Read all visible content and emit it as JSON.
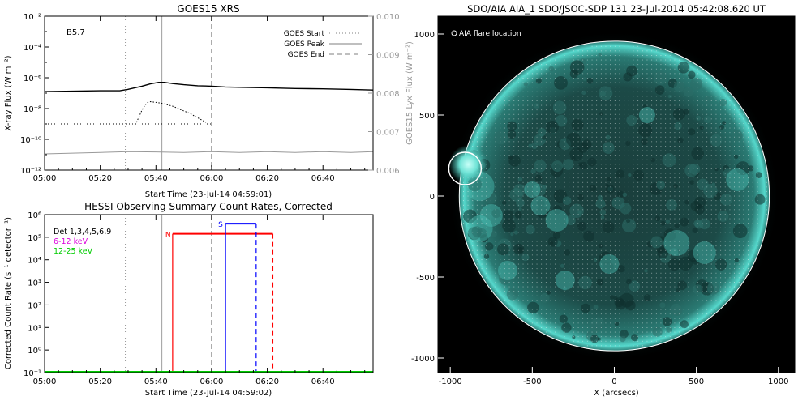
{
  "chart_data": [
    {
      "type": "line",
      "title": "GOES15 XRS",
      "xlabel": "Start Time (23-Jul-14 04:59:01)",
      "ylabel": "X-ray Flux (W m⁻²)",
      "ylabel_right": "GOES15 Lyx Flux (W m⁻²)",
      "class_label": "B5.7",
      "x_ticks": [
        "05:00",
        "05:20",
        "05:40",
        "06:00",
        "06:20",
        "06:40"
      ],
      "x_range_min": [
        0,
        118
      ],
      "y_scale": "log",
      "y_ticks": [
        "10⁻¹²",
        "10⁻¹⁰",
        "10⁻⁸",
        "10⁻⁶",
        "10⁻⁴",
        "10⁻²"
      ],
      "ylim_log10": [
        -12,
        -2
      ],
      "y2_ticks": [
        "0.006",
        "0.007",
        "0.008",
        "0.009",
        "0.010"
      ],
      "y2lim": [
        0.006,
        0.01
      ],
      "legend": {
        "position": "top-right",
        "entries": [
          {
            "label": "GOES Start",
            "style": "dotted",
            "color": "#aaaaaa"
          },
          {
            "label": "GOES Peak",
            "style": "solid",
            "color": "#aaaaaa"
          },
          {
            "label": "GOES End",
            "style": "dashed",
            "color": "#aaaaaa"
          }
        ]
      },
      "events_min": {
        "start": 29,
        "peak": 42,
        "end": 60
      },
      "background_level_log10": -9.0,
      "series": [
        {
          "color": "#000000",
          "style": "solid",
          "x": [
            0,
            20,
            27,
            30,
            35,
            38,
            41,
            43,
            46,
            50,
            55,
            60,
            65,
            70,
            80,
            90,
            100,
            110,
            118
          ],
          "y_log10": [
            -6.9,
            -6.85,
            -6.85,
            -6.75,
            -6.55,
            -6.4,
            -6.3,
            -6.3,
            -6.38,
            -6.45,
            -6.52,
            -6.55,
            -6.6,
            -6.62,
            -6.65,
            -6.7,
            -6.72,
            -6.76,
            -6.8
          ]
        },
        {
          "color": "#000000",
          "style": "dotted",
          "x": [
            33,
            34,
            35,
            36,
            37,
            38,
            40,
            42,
            44,
            46,
            48,
            50,
            52,
            54,
            56,
            58
          ],
          "y_log10": [
            -8.9,
            -8.5,
            -8.1,
            -7.8,
            -7.6,
            -7.55,
            -7.6,
            -7.65,
            -7.75,
            -7.85,
            -8.0,
            -8.15,
            -8.3,
            -8.5,
            -8.7,
            -8.9
          ]
        },
        {
          "color": "#999999",
          "style": "solid",
          "x": [
            0,
            10,
            20,
            30,
            40,
            50,
            60,
            70,
            80,
            90,
            100,
            110,
            118
          ],
          "y_log10": [
            -10.95,
            -10.9,
            -10.85,
            -10.8,
            -10.82,
            -10.85,
            -10.8,
            -10.85,
            -10.8,
            -10.85,
            -10.8,
            -10.85,
            -10.8
          ]
        }
      ]
    },
    {
      "type": "line",
      "title": "HESSI Observing Summary Count Rates, Corrected",
      "xlabel": "Start Time (23-Jul-14 04:59:02)",
      "ylabel": "Corrected Count Rate (s⁻¹ detector⁻¹)",
      "x_ticks": [
        "05:00",
        "05:20",
        "05:40",
        "06:00",
        "06:20",
        "06:40"
      ],
      "x_range_min": [
        0,
        118
      ],
      "y_scale": "log",
      "y_ticks": [
        "10⁻¹",
        "10⁰",
        "10¹",
        "10²",
        "10³",
        "10⁴",
        "10⁵",
        "10⁶"
      ],
      "ylim_log10": [
        -1,
        6
      ],
      "legend_lines": [
        {
          "text": "Det 1,3,4,5,6,9",
          "color": "#000000"
        },
        {
          "text": "6-12 keV",
          "color": "#dd00dd"
        },
        {
          "text": "12-25 keV",
          "color": "#00cc00"
        }
      ],
      "markers": {
        "N": "#ff0000",
        "S": "#0000ff"
      },
      "events_min": {
        "start": 29,
        "peak": 42,
        "end": 60
      },
      "intervals_min": {
        "night": [
          46,
          82
        ],
        "saa": [
          65,
          76
        ]
      },
      "night_level_log10": 5.15,
      "saa_level_log10": 5.6,
      "baseline_color": "#00cc00",
      "baseline_level_log10": -1.0
    },
    {
      "type": "image",
      "title": "SDO/AIA AIA_1 SDO/JSOC-SDP 131 23-Jul-2014 05:42:08.620 UT",
      "legend_text": "AIA flare location",
      "xlabel": "X (arcsecs)",
      "x_ticks": [
        "-1000",
        "-500",
        "0",
        "500",
        "1000"
      ],
      "y_ticks": [
        "1000",
        "500",
        "0",
        "-500",
        "-1000"
      ],
      "xlim": [
        -1075,
        1100
      ],
      "ylim": [
        -1090,
        1110
      ],
      "solar_radius_arcsec": 945,
      "flare_location_arcsec": [
        -910,
        170
      ],
      "colors": {
        "limb": "#ffffff",
        "disk": "#14403e",
        "glow": "#39c9be"
      }
    }
  ]
}
